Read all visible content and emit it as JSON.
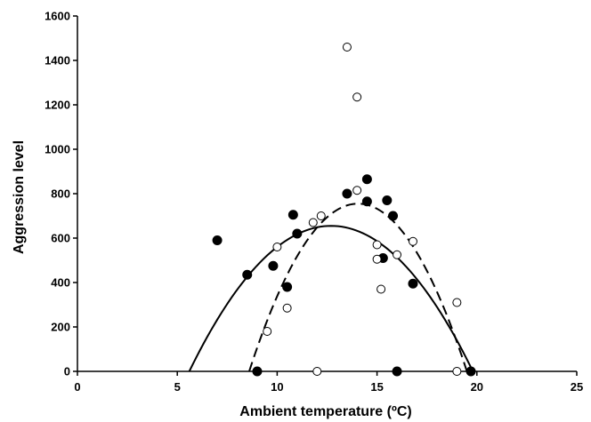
{
  "chart_data": {
    "type": "scatter",
    "title": "",
    "xlabel": "Ambient temperature (ºC)",
    "ylabel": "Aggression level",
    "xlim": [
      0,
      25
    ],
    "ylim": [
      0,
      1600
    ],
    "xticks": [
      0,
      5,
      10,
      15,
      20,
      25
    ],
    "yticks": [
      0,
      200,
      400,
      600,
      800,
      1000,
      1200,
      1400,
      1600
    ],
    "grid": false,
    "legend": "none",
    "series": [
      {
        "marker": "filled-circle",
        "color": "#000000",
        "points": [
          [
            7.0,
            590
          ],
          [
            8.5,
            435
          ],
          [
            9.0,
            0
          ],
          [
            9.8,
            475
          ],
          [
            10.5,
            380
          ],
          [
            10.8,
            705
          ],
          [
            11.0,
            620
          ],
          [
            13.5,
            800
          ],
          [
            14.5,
            865
          ],
          [
            14.5,
            765
          ],
          [
            15.3,
            510
          ],
          [
            15.5,
            770
          ],
          [
            15.8,
            700
          ],
          [
            16.0,
            0
          ],
          [
            16.8,
            395
          ],
          [
            19.7,
            0
          ]
        ]
      },
      {
        "marker": "open-circle",
        "color": "#000000",
        "points": [
          [
            9.5,
            180
          ],
          [
            10.0,
            560
          ],
          [
            10.5,
            285
          ],
          [
            11.8,
            670
          ],
          [
            12.0,
            0
          ],
          [
            12.2,
            700
          ],
          [
            13.5,
            1460
          ],
          [
            14.0,
            1235
          ],
          [
            14.0,
            815
          ],
          [
            15.0,
            570
          ],
          [
            15.0,
            505
          ],
          [
            15.2,
            370
          ],
          [
            16.0,
            525
          ],
          [
            16.8,
            585
          ],
          [
            19.0,
            310
          ],
          [
            19.0,
            0
          ]
        ]
      }
    ],
    "fits": [
      {
        "style": "solid",
        "color": "#000000",
        "x_roots": [
          5.6,
          19.8
        ],
        "peak_x": 12.7,
        "peak_y": 655
      },
      {
        "style": "dashed",
        "color": "#000000",
        "x_roots": [
          8.6,
          19.5
        ],
        "peak_x": 14.05,
        "peak_y": 755
      }
    ]
  }
}
